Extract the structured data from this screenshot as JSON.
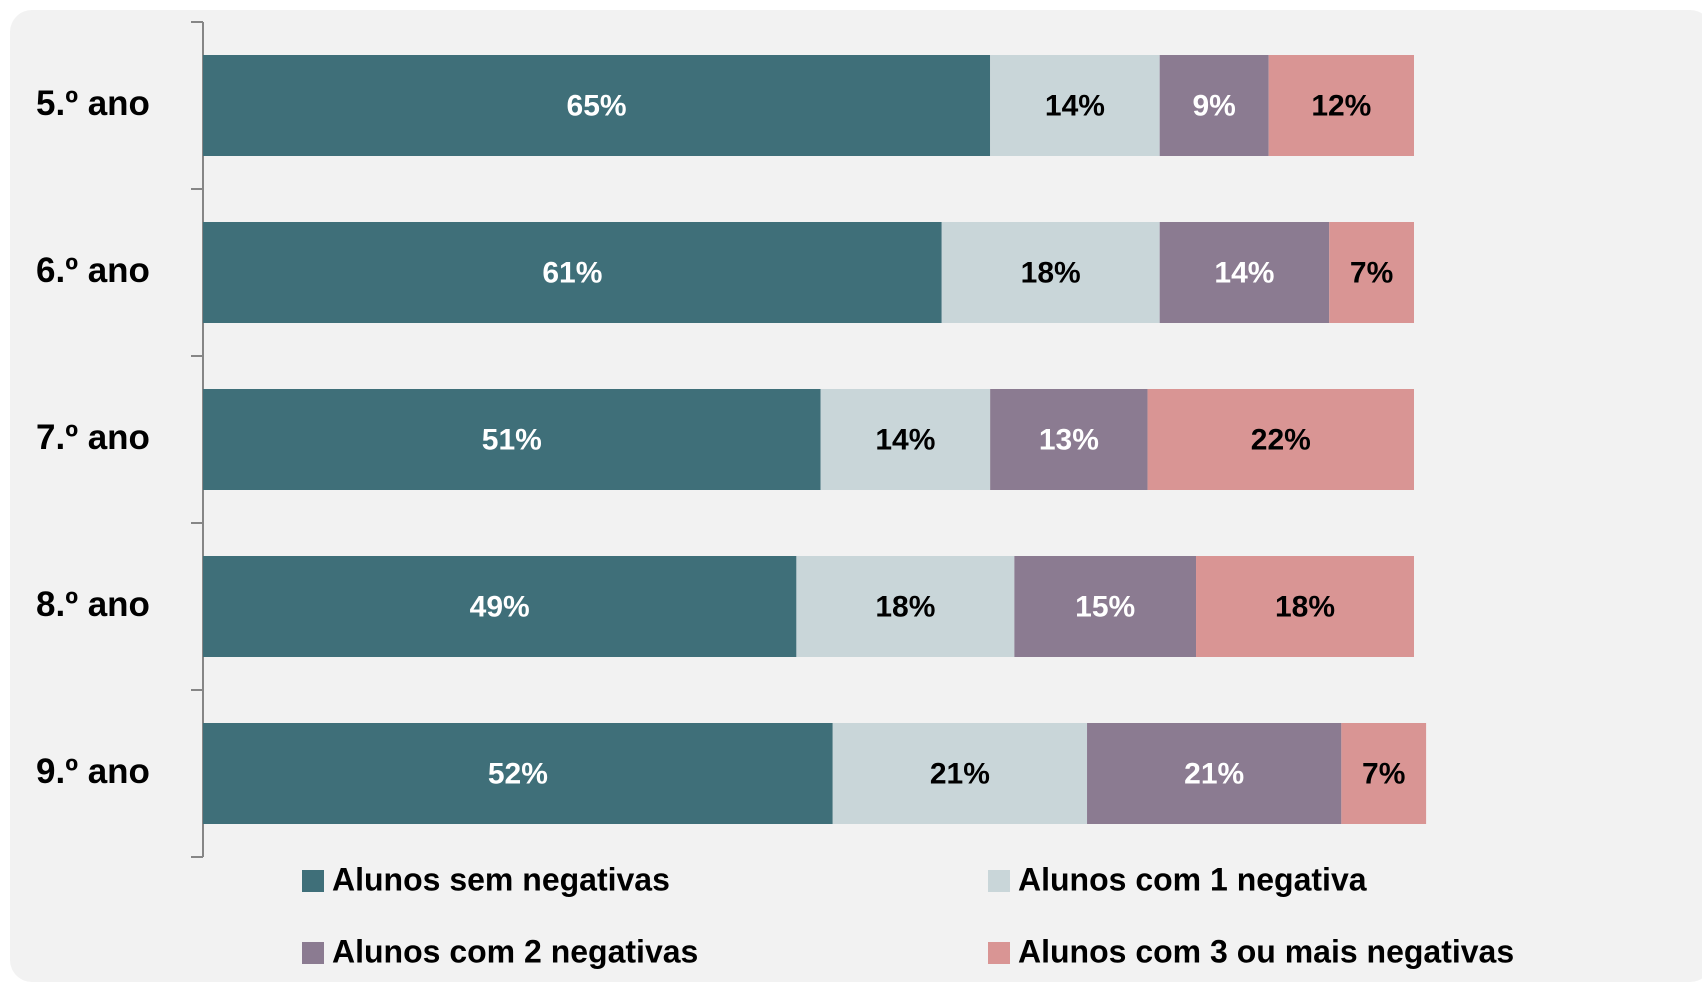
{
  "chart_data": {
    "type": "stacked-bar",
    "orientation": "horizontal",
    "categories": [
      "5.º ano",
      "6.º ano",
      "7.º ano",
      "8.º ano",
      "9.º ano"
    ],
    "series": [
      {
        "name": "Alunos sem negativas",
        "color": "#3f6f79",
        "label_color": "#ffffff",
        "values": [
          65,
          61,
          51,
          49,
          52
        ],
        "value_labels": [
          "65%",
          "61%",
          "51%",
          "49%",
          "52%"
        ]
      },
      {
        "name": "Alunos com 1 negativa",
        "color": "#c9d6d9",
        "label_color": "#000000",
        "values": [
          14,
          18,
          14,
          18,
          21
        ],
        "value_labels": [
          "14%",
          "18%",
          "14%",
          "18%",
          "21%"
        ]
      },
      {
        "name": "Alunos com 2 negativas",
        "color": "#8b7b91",
        "label_color": "#ffffff",
        "values": [
          9,
          14,
          13,
          15,
          21
        ],
        "value_labels": [
          "9%",
          "14%",
          "13%",
          "15%",
          "21%"
        ]
      },
      {
        "name": "Alunos com 3 ou mais negativas",
        "color": "#d99594",
        "label_color": "#000000",
        "values": [
          12,
          7,
          22,
          18,
          7
        ],
        "value_labels": [
          "12%",
          "7%",
          "22%",
          "18%",
          "7%"
        ]
      }
    ],
    "legend": "bottom"
  }
}
